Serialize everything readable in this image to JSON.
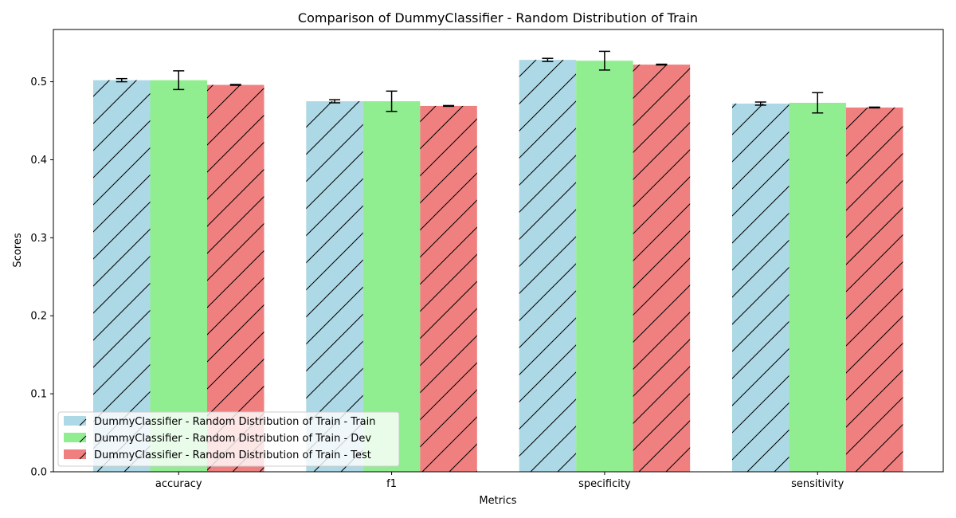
{
  "chart_data": {
    "type": "bar",
    "title": "Comparison of DummyClassifier - Random Distribution of Train",
    "xlabel": "Metrics",
    "ylabel": "Scores",
    "ylim": [
      0,
      0.567
    ],
    "yticks": [
      0.0,
      0.1,
      0.2,
      0.3,
      0.4,
      0.5
    ],
    "categories": [
      "accuracy",
      "f1",
      "specificity",
      "sensitivity"
    ],
    "legend_position": "lower-left",
    "grid": false,
    "series": [
      {
        "name": "DummyClassifier - Random Distribution of Train - Train",
        "color": "#add8e6",
        "hatch": "diagonal",
        "values": [
          0.502,
          0.475,
          0.528,
          0.472
        ],
        "errors": [
          0.002,
          0.002,
          0.002,
          0.002
        ]
      },
      {
        "name": "DummyClassifier - Random Distribution of Train - Dev",
        "color": "#90ee90",
        "hatch": "none",
        "values": [
          0.502,
          0.475,
          0.527,
          0.473
        ],
        "errors": [
          0.012,
          0.013,
          0.012,
          0.013
        ]
      },
      {
        "name": "DummyClassifier - Random Distribution of Train - Test",
        "color": "#f08080",
        "hatch": "diagonal",
        "values": [
          0.496,
          0.469,
          0.522,
          0.467
        ],
        "errors": [
          0.0005,
          0.0005,
          0.0005,
          0.0005
        ]
      }
    ]
  }
}
